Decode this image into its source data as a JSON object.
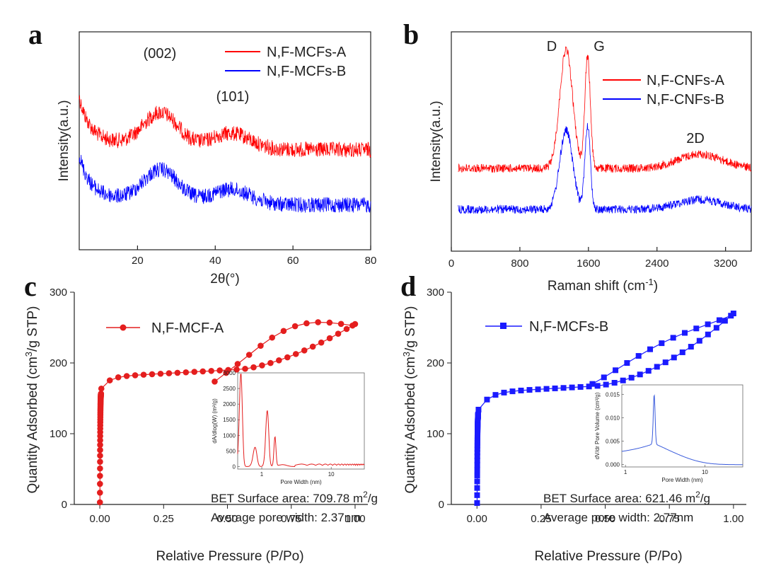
{
  "chart_data": [
    {
      "panel": "a",
      "type": "line",
      "xlabel": "2θ(°)",
      "ylabel": "Intensity(a.u.)",
      "xlim": [
        5,
        80
      ],
      "xticks": [
        20,
        40,
        60,
        80
      ],
      "series": [
        {
          "name": "N,F-MCFs-A",
          "color": "#ff0000"
        },
        {
          "name": "N,F-MCFs-B",
          "color": "#0000ff"
        }
      ],
      "annotations": [
        "(002)",
        "(101)"
      ]
    },
    {
      "panel": "b",
      "type": "line",
      "xlabel": "Raman shift (cm-1)",
      "xlabel_main": "Raman shift (cm",
      "xlabel_sup": "-1",
      "xlabel_close": ")",
      "ylabel": "Intensity(a.u.)",
      "xlim": [
        0,
        3500
      ],
      "xticks": [
        0,
        800,
        1600,
        2400,
        3200
      ],
      "series": [
        {
          "name": "N,F-CNFs-A",
          "color": "#ff0000"
        },
        {
          "name": "N,F-CNFs-B",
          "color": "#0000ff"
        }
      ],
      "annotations": [
        "D",
        "G",
        "2D"
      ]
    },
    {
      "panel": "c",
      "type": "scatter",
      "xlabel": "Relative Pressure (P/Po)",
      "ylabel": "Quantity Adsorbed (cm3/g STP)",
      "xlim": [
        -0.1,
        1.05
      ],
      "ylim": [
        0,
        300
      ],
      "xticks": [
        "0.00",
        "0.25",
        "0.50",
        "0.75",
        "1.00"
      ],
      "yticks": [
        0,
        100,
        200,
        300
      ],
      "series": [
        {
          "name": "N,F-MCF-A",
          "color": "#e41e1e",
          "marker": "circle"
        }
      ],
      "notes": [
        "BET Surface area: 709.78 m2/g",
        "Average pore width: 2.37nm"
      ],
      "inset": {
        "xlabel": "Pore Width (nm)",
        "ylabel": "dA/dlog(W) (m2/g)",
        "yticks": [
          0,
          500,
          1000,
          1500,
          2000,
          2500,
          3000
        ],
        "xticks": [
          "1",
          "10"
        ],
        "peaks": [
          {
            "x_nm": 0.6,
            "y": 3000
          },
          {
            "x_nm": 0.8,
            "y": 600
          },
          {
            "x_nm": 1.2,
            "y": 1800
          },
          {
            "x_nm": 1.5,
            "y": 950
          }
        ]
      }
    },
    {
      "panel": "d",
      "type": "scatter",
      "xlabel": "Relative Pressure (P/Po)",
      "ylabel": "Quantity Adsorbed (cm3/g STP)",
      "xlim": [
        -0.1,
        1.05
      ],
      "ylim": [
        0,
        300
      ],
      "xticks": [
        "0.00",
        "0.25",
        "0.50",
        "0.75",
        "1.00"
      ],
      "yticks": [
        0,
        100,
        200,
        300
      ],
      "series": [
        {
          "name": "N,F-MCFs-B",
          "color": "#1a1aff",
          "marker": "square"
        }
      ],
      "notes": [
        "BET Surface area: 621.46 m2/g",
        "Average pore width: 2.77nm"
      ],
      "inset": {
        "xlabel": "Pore Width (nm)",
        "ylabel": "dV/dr Pore Volume (cm3/g)",
        "yticks": [
          "0.000",
          "0.005",
          "0.010",
          "0.015"
        ],
        "xticks": [
          "1",
          "10"
        ],
        "peaks": [
          {
            "x_nm": 2.3,
            "y": 0.015
          }
        ]
      }
    }
  ],
  "panels": {
    "a": {
      "label": "a",
      "ylabel": "Intensity(a.u.)",
      "xlabel": "2θ(°)",
      "ann1": "(002)",
      "ann2": "(101)",
      "leg1": "N,F-MCFs-A",
      "leg2": "N,F-MCFs-B"
    },
    "b": {
      "label": "b",
      "ylabel": "Intensity(a.u.)",
      "xlabel_main": "Raman shift (cm",
      "xlabel_sup": "-1",
      "xlabel_close": ")",
      "annD": "D",
      "annG": "G",
      "ann2D": "2D",
      "leg1": "N,F-CNFs-A",
      "leg2": "N,F-CNFs-B"
    },
    "c": {
      "label": "c",
      "ylabel_main": "Quantity Adsorbed (cm",
      "ylabel_sup": "3",
      "ylabel_close": "/g STP)",
      "xlabel": "Relative Pressure (P/Po)",
      "leg": "N,F-MCF-A",
      "note1_main": "BET Surface area: 709.78 m",
      "note1_sup": "2",
      "note1_close": "/g",
      "note2": "Average pore width: 2.37nm",
      "inset_xlabel": "Pore Width (nm)",
      "inset_ylabel": "dA/dlog(W) (m²/g)"
    },
    "d": {
      "label": "d",
      "ylabel_main": "Quantity Adsorbed (cm",
      "ylabel_sup": "3",
      "ylabel_close": "/g STP)",
      "xlabel": "Relative Pressure (P/Po)",
      "leg": "N,F-MCFs-B",
      "note1_main": "BET Surface area: 621.46 m",
      "note1_sup": "2",
      "note1_close": "/g",
      "note2": "Average pore width: 2.77nm",
      "inset_xlabel": "Pore Width (nm)",
      "inset_ylabel": "dV/dr Pore Volume (cm³/g)"
    }
  }
}
